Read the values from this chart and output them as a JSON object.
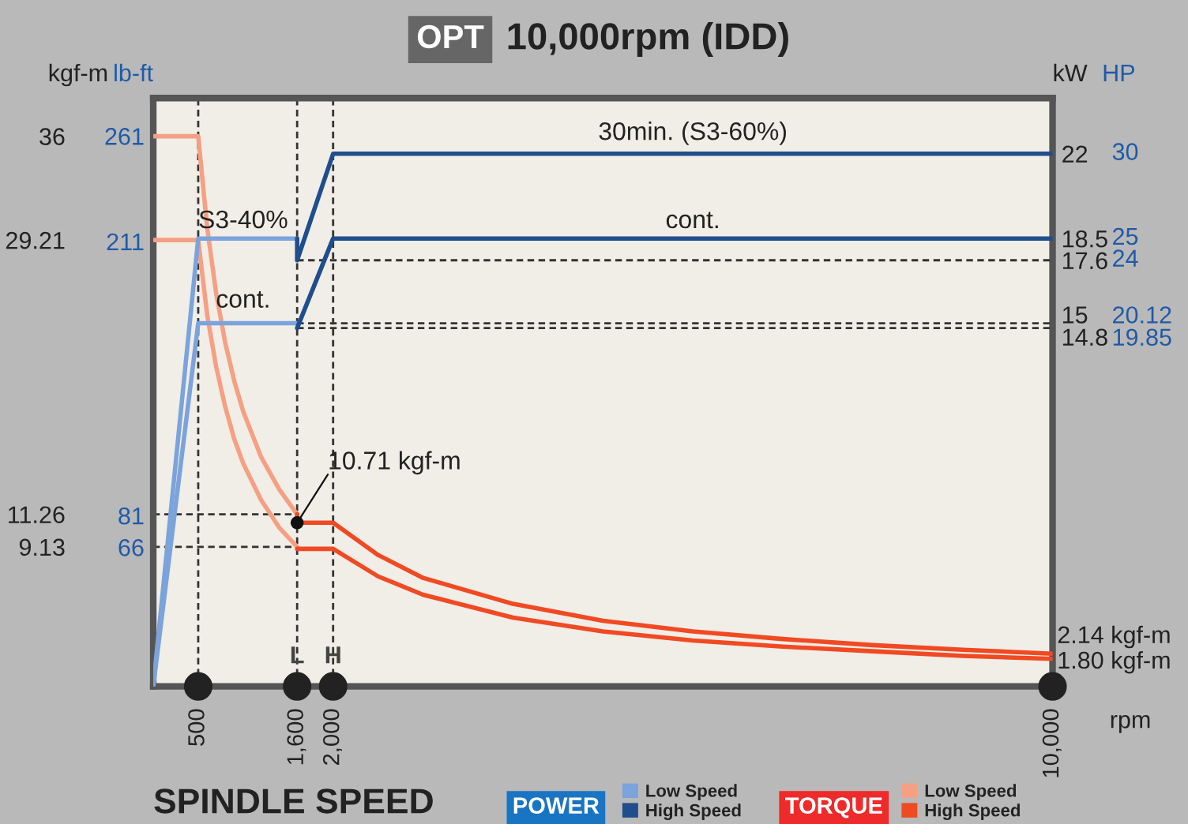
{
  "chart_data": {
    "type": "line",
    "title": "10,000rpm (IDD)",
    "xlabel": "SPINDLE SPEED",
    "ylabel": "kgf-m",
    "y3label": "lb-ft",
    "y2label": "kW",
    "xlim": [
      0,
      10000
    ],
    "xticks": [
      500,
      {
        "value": 1600,
        "label": "1,600"
      },
      {
        "value": 2000,
        "label": "2,000"
      },
      {
        "value": 10000,
        "label": "10,000"
      }
    ],
    "ylim": [
      0,
      38.5
    ],
    "yticks": [
      36,
      29.21,
      11.26,
      9.13
    ],
    "y3lim": [
      0,
      279
    ],
    "y3ticks": [
      261,
      211,
      81,
      66
    ],
    "y2lim": [
      0,
      24.3
    ],
    "y2ticks": [
      22,
      18.5,
      17.6,
      15,
      14.8
    ],
    "series": [
      {
        "name": "Low Speed",
        "color": "#7ba3dc",
        "axis": "y2",
        "x": [
          0,
          500,
          1600
        ],
        "values": [
          0,
          18.5,
          18.5
        ]
      },
      {
        "color": "#7ba3dc",
        "axis": "y2",
        "x": [
          0,
          500,
          1600
        ],
        "values": [
          0,
          15,
          15
        ]
      },
      {
        "name": "High Speed",
        "color": "#1f4e8c",
        "axis": "y2",
        "x": [
          1600,
          1600,
          2000,
          10000
        ],
        "values": [
          18.5,
          17.6,
          22,
          22
        ]
      },
      {
        "color": "#1f4e8c",
        "axis": "y2",
        "x": [
          1600,
          2000,
          10000
        ],
        "values": [
          14.8,
          18.5,
          18.5
        ]
      },
      {
        "name": "Low Speed",
        "color": "#f5a083",
        "x": [
          0,
          500,
          600,
          700,
          800,
          900,
          1000,
          1200,
          1400,
          1600
        ],
        "values": [
          36,
          36,
          30,
          25.7,
          22.5,
          20,
          18,
          15,
          12.9,
          11.26
        ]
      },
      {
        "color": "#f5a083",
        "x": [
          0,
          500,
          600,
          700,
          800,
          900,
          1000,
          1200,
          1400,
          1600
        ],
        "values": [
          29.21,
          29.21,
          24.3,
          20.9,
          18.3,
          16.2,
          14.6,
          12.2,
          10.4,
          9.13
        ]
      },
      {
        "name": "High Speed",
        "color": "#f04a23",
        "x": [
          1600,
          1600,
          2000,
          2500,
          3000,
          4000,
          5000,
          6000,
          7000,
          8000,
          9000,
          10000
        ],
        "values": [
          11.26,
          10.71,
          10.71,
          8.6,
          7.1,
          5.4,
          4.3,
          3.6,
          3.1,
          2.7,
          2.4,
          2.14
        ]
      },
      {
        "color": "#f04a23",
        "x": [
          1600,
          2000,
          2500,
          3000,
          4000,
          5000,
          6000,
          7000,
          8000,
          9000,
          10000
        ],
        "values": [
          9.0,
          9.0,
          7.2,
          6.0,
          4.5,
          3.6,
          3.0,
          2.6,
          2.3,
          2.0,
          1.8
        ]
      }
    ],
    "ref_lines": [
      {
        "axis": "x",
        "value": 500,
        "line_style": "dashed",
        "color": "#333333"
      },
      {
        "axis": "x",
        "value": 1600,
        "line_style": "dashed",
        "color": "#333333"
      },
      {
        "axis": "x",
        "value": 2000,
        "line_style": "dashed",
        "color": "#333333"
      },
      {
        "axis": "y",
        "value": 11.26,
        "line_style": "dashed",
        "color": "#333333"
      },
      {
        "axis": "y",
        "value": 9.13,
        "line_style": "dashed",
        "color": "#333333"
      },
      {
        "axis": "y2",
        "value": 17.6,
        "line_style": "dashed",
        "color": "#333333"
      },
      {
        "axis": "y2",
        "value": 15,
        "line_style": "dashed",
        "color": "#333333"
      },
      {
        "axis": "y2",
        "value": 14.8,
        "line_style": "dashed",
        "color": "#333333"
      }
    ],
    "annotations": [
      "OPT",
      "30min. (S3-60%)",
      "cont.",
      "S3-40%",
      "cont.",
      {
        "text": "10.71 kgf-m",
        "x": 1600,
        "y": 10.71
      },
      "L",
      "H",
      "2.14 kgf-m",
      "1.80 kgf-m",
      "rpm",
      "POWER",
      "TORQUE",
      "HP",
      "30",
      "25",
      "24",
      "20.12",
      "19.85"
    ],
    "legend": "bottom",
    "line_style": "solid"
  }
}
